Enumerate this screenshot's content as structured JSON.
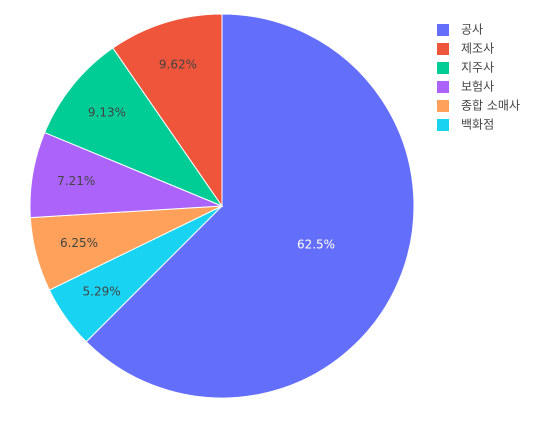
{
  "chart_data": {
    "type": "pie",
    "slices": [
      {
        "name": "공사",
        "value": 62.5,
        "label": "62.5%",
        "color": "#636efa",
        "label_color": "#ffffff"
      },
      {
        "name": "백화점",
        "value": 5.29,
        "label": "5.29%",
        "color": "#19d3f3",
        "label_color": "#444444"
      },
      {
        "name": "종합 소매사",
        "value": 6.25,
        "label": "6.25%",
        "color": "#ffa15a",
        "label_color": "#444444"
      },
      {
        "name": "보험사",
        "value": 7.21,
        "label": "7.21%",
        "color": "#ab63fa",
        "label_color": "#444444"
      },
      {
        "name": "지주사",
        "value": 9.13,
        "label": "9.13%",
        "color": "#00cc96",
        "label_color": "#444444"
      },
      {
        "name": "제조사",
        "value": 9.62,
        "label": "9.62%",
        "color": "#ef553b",
        "label_color": "#444444"
      }
    ],
    "legend": {
      "placement": "top-right",
      "order": [
        "공사",
        "제조사",
        "지주사",
        "보험사",
        "종합 소매사",
        "백화점"
      ]
    },
    "start_angle_deg": 0,
    "direction": "clockwise"
  }
}
